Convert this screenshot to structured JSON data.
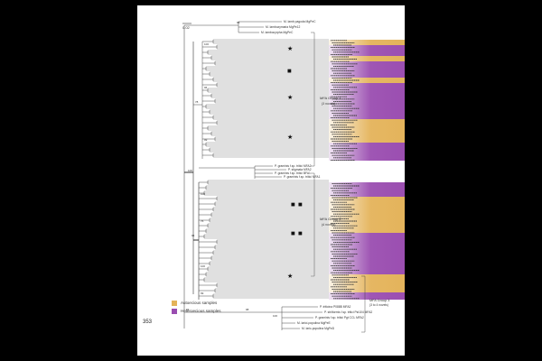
{
  "page": {
    "number": "353"
  },
  "colors": {
    "autoecious": "#e4b35a",
    "heteroecious": "#9a4db0",
    "branch": "#333333"
  },
  "legend": [
    {
      "label": "Autoecious samples",
      "color_key": "autoecious"
    },
    {
      "label": "Heteroecious samples",
      "color_key": "heteroecious"
    }
  ],
  "scale_bar": {
    "label": "0.02"
  },
  "groups": [
    {
      "label": "MFA Group 1",
      "sublabel": "(3 novels)"
    },
    {
      "label": "MFA Group 2",
      "sublabel": "(4 novels)"
    },
    {
      "label": "MFA Group 3",
      "sublabel": "(3 to 4 novels)"
    }
  ],
  "taxa_top": [
    "M. lamb pagoda MgPeC",
    "M. lambozymaria MgPe12",
    "M. lambocyrpha MgPeC"
  ],
  "taxa_middle": [
    "P. graminis f.sp. tritici MFA2",
    "P. stigmata MFA2",
    "P. graminis f.sp. tritici BFA1",
    "P. graminis f.sp. tritici MFA1"
  ],
  "taxa_bottom": [
    "P. triticina P088B MFA2",
    "P. striiformis f.sp. tritici Pst104 MFA2",
    "P. graminis f.sp. tritici Pgt CCL MFA2",
    "M. larici-populina MgPeE",
    "M. laric-populina MgPeD"
  ],
  "bootstrap": [
    "100",
    "78",
    "100",
    "96",
    "99",
    "94",
    "100",
    "76",
    "100",
    "93",
    "98",
    "100",
    "95",
    "99"
  ],
  "markers": [
    {
      "symbol": "★"
    },
    {
      "symbol": "■"
    },
    {
      "symbol": "★"
    },
    {
      "symbol": "★"
    },
    {
      "symbol": "■"
    },
    {
      "symbol": "■"
    },
    {
      "symbol": "■"
    },
    {
      "symbol": "■"
    },
    {
      "symbol": "★"
    }
  ]
}
